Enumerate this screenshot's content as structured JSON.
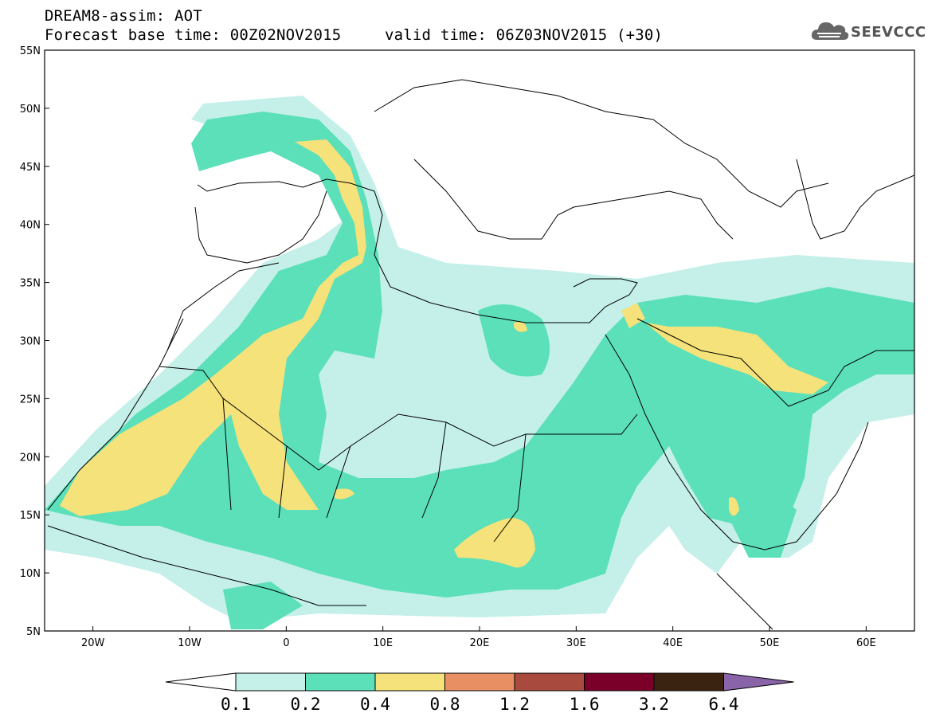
{
  "header": {
    "line1": "DREAM8-assim: AOT",
    "line2": "Forecast base time: 00Z02NOV2015",
    "line3": "valid time: 06Z03NOV2015 (+30)"
  },
  "logo": {
    "text": "SEEVCCC",
    "icon": "cloud-icon"
  },
  "map": {
    "lon_range": [
      -25,
      65
    ],
    "lat_range": [
      5,
      55
    ],
    "lon_ticks": [
      "20W",
      "10W",
      "0",
      "10E",
      "20E",
      "30E",
      "40E",
      "50E",
      "60E"
    ],
    "lat_ticks": [
      "55N",
      "50N",
      "45N",
      "40N",
      "35N",
      "30N",
      "25N",
      "20N",
      "15N",
      "10N",
      "5N"
    ]
  },
  "colorbar": {
    "labels": [
      "0.1",
      "0.2",
      "0.4",
      "0.8",
      "1.2",
      "1.6",
      "3.2",
      "6.4"
    ],
    "colors": [
      "#ffffff",
      "#c4f0e9",
      "#5be0b9",
      "#f5e27a",
      "#e88f63",
      "#a84a3d",
      "#7a0029",
      "#3b2311",
      "#8a64a8"
    ]
  }
}
